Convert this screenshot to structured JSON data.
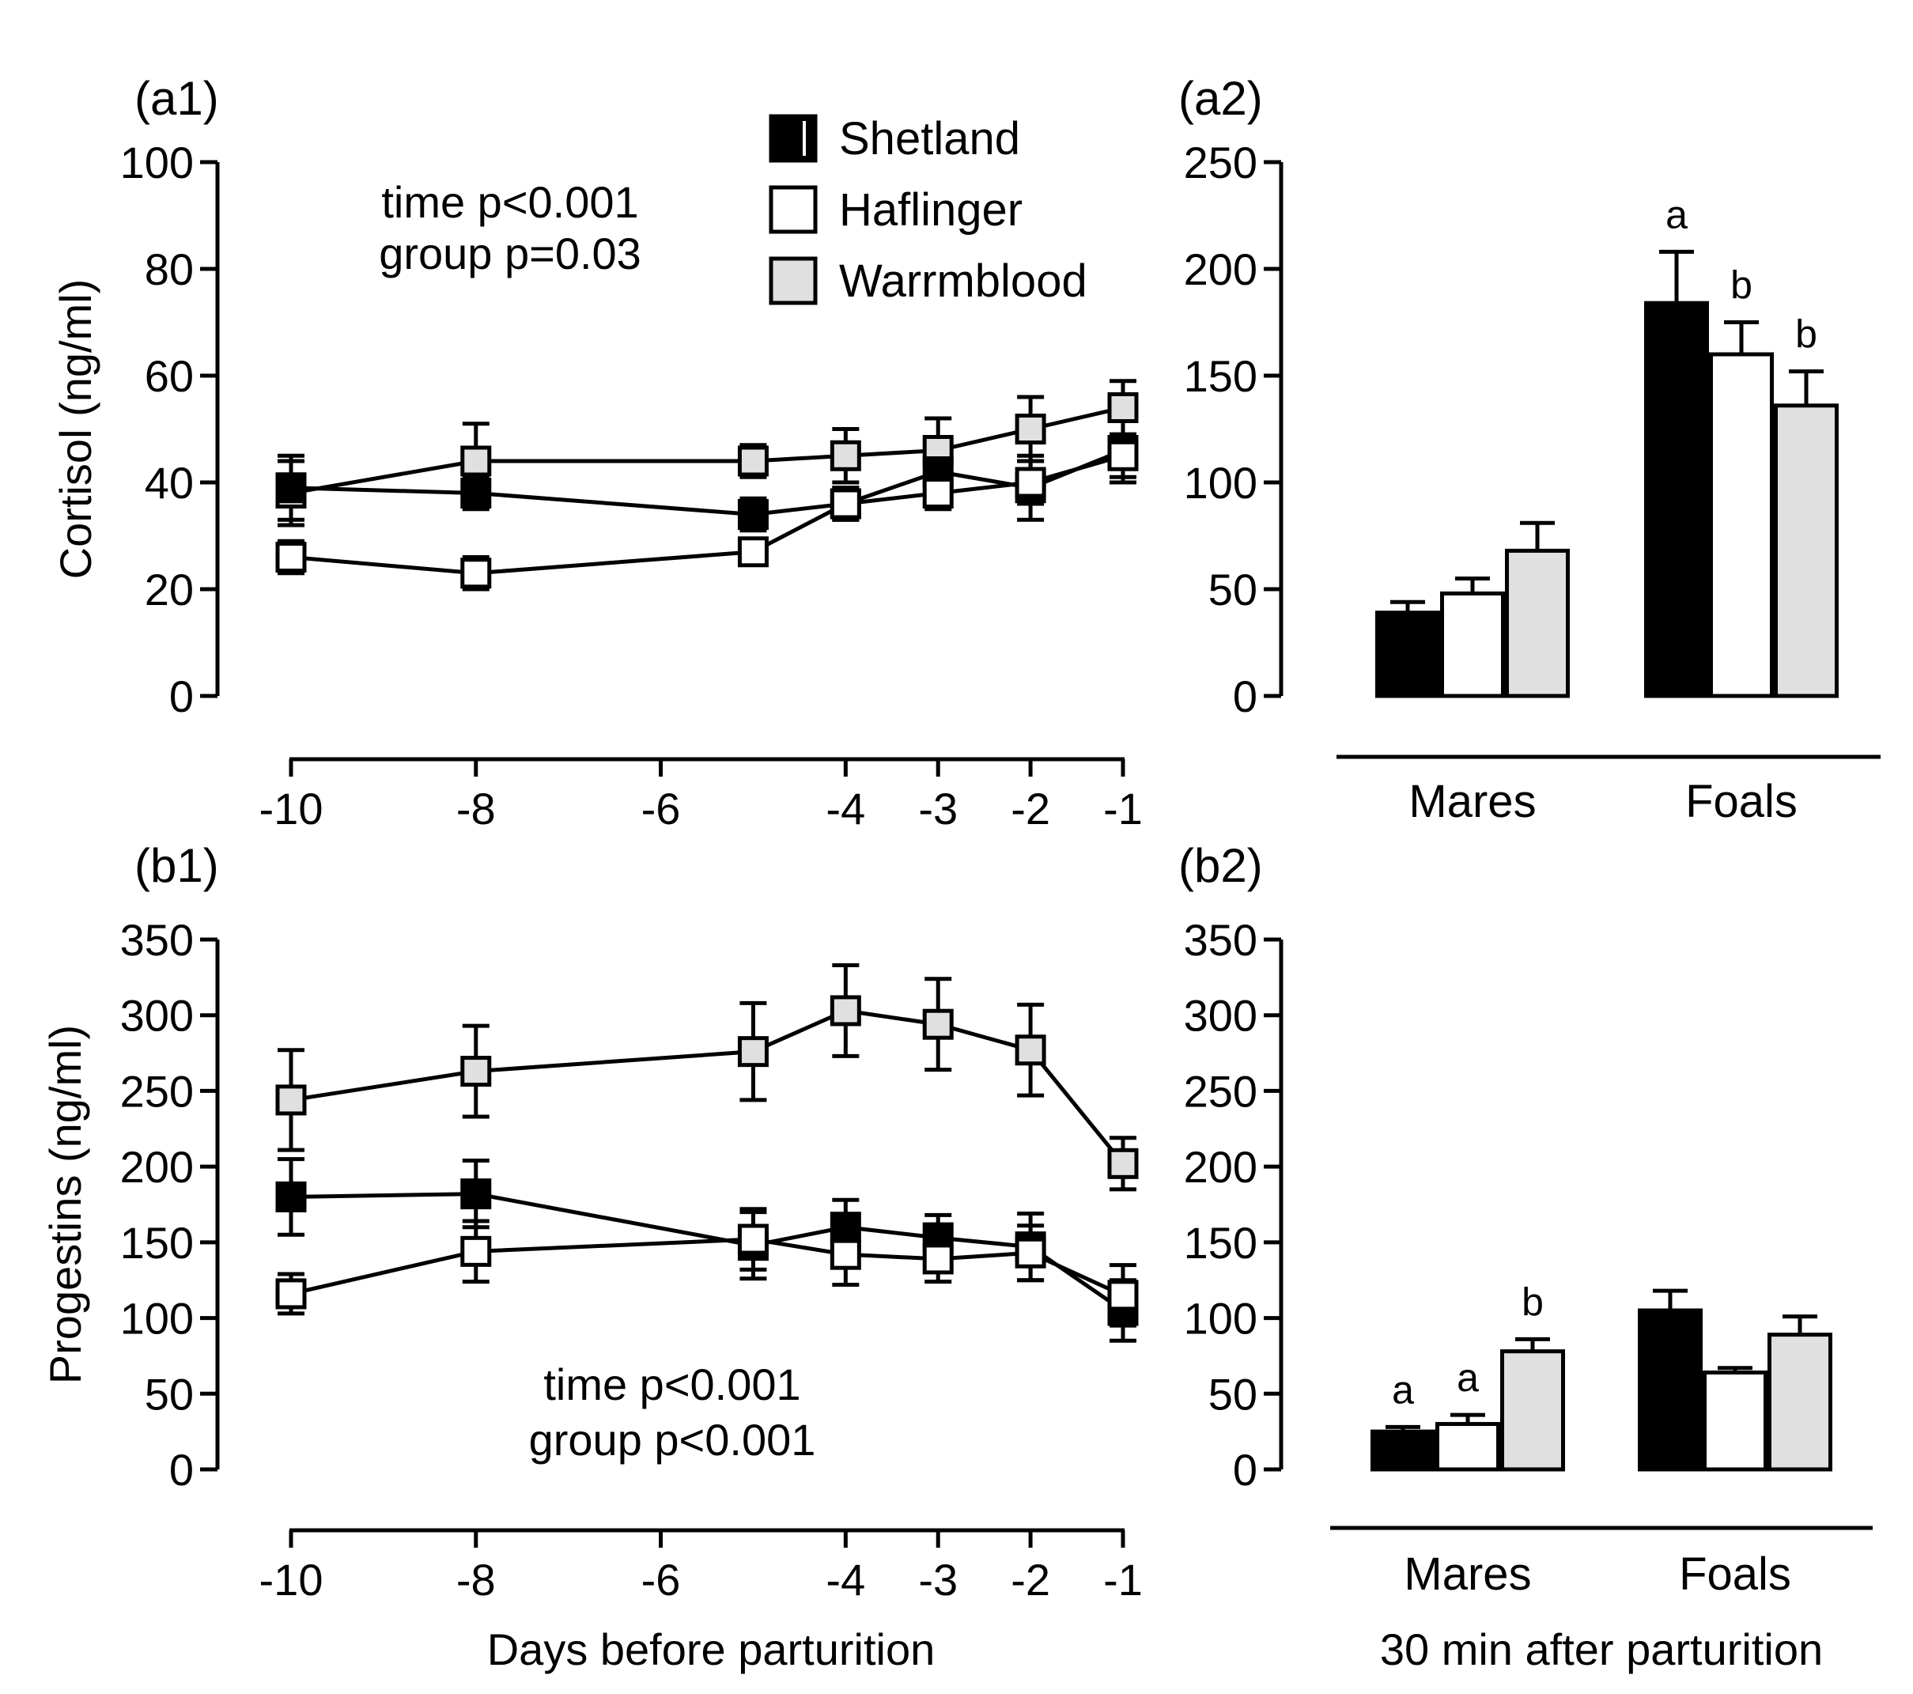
{
  "legend": {
    "items": [
      {
        "label": "Shetland",
        "fill": "#000000"
      },
      {
        "label": "Haflinger",
        "fill": "#ffffff"
      },
      {
        "label": "Warrmblood",
        "fill": "#e0e0e0"
      }
    ]
  },
  "colors": {
    "shetland": "#000000",
    "haflinger": "#ffffff",
    "warmblood": "#e0e0e0",
    "ink": "#000000"
  },
  "chart_data": [
    {
      "id": "a1",
      "panel_label": "(a1)",
      "type": "line",
      "ylabel": "Cortisol (ng/ml)",
      "xlabel": "",
      "ylim": [
        0,
        100
      ],
      "yticks": [
        0,
        20,
        40,
        60,
        80,
        100
      ],
      "xlim": [
        -10,
        -1
      ],
      "xticks": [
        -10,
        -8,
        -6,
        -4,
        -3,
        -2,
        -1
      ],
      "x": [
        -10,
        -8,
        -5,
        -4,
        -3,
        -2,
        -1
      ],
      "annotation": [
        "time p<0.001",
        "group p=0.03"
      ],
      "series": [
        {
          "name": "Shetland",
          "values": [
            39,
            38,
            34,
            36,
            42,
            39,
            46
          ],
          "errors": [
            6,
            3,
            3,
            3,
            4,
            6,
            6
          ]
        },
        {
          "name": "Haflinger",
          "values": [
            26,
            23,
            27,
            36,
            38,
            40,
            45
          ],
          "errors": [
            3,
            3,
            2,
            3,
            3,
            4,
            4
          ]
        },
        {
          "name": "Warrmblood",
          "values": [
            38,
            44,
            44,
            45,
            46,
            50,
            54
          ],
          "errors": [
            6,
            7,
            3,
            5,
            6,
            6,
            5
          ]
        }
      ]
    },
    {
      "id": "a2",
      "panel_label": "(a2)",
      "type": "bar",
      "ylim": [
        0,
        250
      ],
      "yticks": [
        0,
        50,
        100,
        150,
        200,
        250
      ],
      "categories": [
        "Mares",
        "Foals"
      ],
      "xlabel": "",
      "series": [
        {
          "name": "Shetland",
          "values": [
            39,
            184
          ],
          "errors": [
            5,
            24
          ],
          "letters": [
            "",
            "a"
          ]
        },
        {
          "name": "Haflinger",
          "values": [
            48,
            160
          ],
          "errors": [
            7,
            15
          ],
          "letters": [
            "",
            "b"
          ]
        },
        {
          "name": "Warrmblood",
          "values": [
            68,
            136
          ],
          "errors": [
            13,
            16
          ],
          "letters": [
            "",
            "b"
          ]
        }
      ]
    },
    {
      "id": "b1",
      "panel_label": "(b1)",
      "type": "line",
      "ylabel": "Progestins (ng/ml)",
      "xlabel": "Days before parturition",
      "ylim": [
        0,
        350
      ],
      "yticks": [
        0,
        50,
        100,
        150,
        200,
        250,
        300,
        350
      ],
      "xlim": [
        -10,
        -1
      ],
      "xticks": [
        -10,
        -8,
        -6,
        -4,
        -3,
        -2,
        -1
      ],
      "x": [
        -10,
        -8,
        -5,
        -4,
        -3,
        -2,
        -1
      ],
      "annotation": [
        "time p<0.001",
        "group p<0.001"
      ],
      "series": [
        {
          "name": "Shetland",
          "values": [
            180,
            182,
            148,
            160,
            153,
            147,
            105
          ],
          "errors": [
            25,
            22,
            22,
            18,
            15,
            22,
            20
          ]
        },
        {
          "name": "Haflinger",
          "values": [
            116,
            144,
            152,
            142,
            139,
            143,
            115
          ],
          "errors": [
            13,
            20,
            20,
            20,
            15,
            18,
            20
          ]
        },
        {
          "name": "Warrmblood",
          "values": [
            244,
            263,
            276,
            303,
            294,
            277,
            202
          ],
          "errors": [
            33,
            30,
            32,
            30,
            30,
            30,
            17
          ]
        }
      ]
    },
    {
      "id": "b2",
      "panel_label": "(b2)",
      "type": "bar",
      "ylim": [
        0,
        350
      ],
      "yticks": [
        0,
        50,
        100,
        150,
        200,
        250,
        300,
        350
      ],
      "categories": [
        "Mares",
        "Foals"
      ],
      "xlabel": "30 min after parturition",
      "series": [
        {
          "name": "Shetland",
          "values": [
            25,
            105
          ],
          "errors": [
            3,
            13
          ],
          "letters": [
            "a",
            ""
          ]
        },
        {
          "name": "Haflinger",
          "values": [
            30,
            64
          ],
          "errors": [
            6,
            3
          ],
          "letters": [
            "a",
            ""
          ]
        },
        {
          "name": "Warrmblood",
          "values": [
            78,
            89
          ],
          "errors": [
            8,
            12
          ],
          "letters": [
            "b",
            ""
          ]
        }
      ]
    }
  ]
}
